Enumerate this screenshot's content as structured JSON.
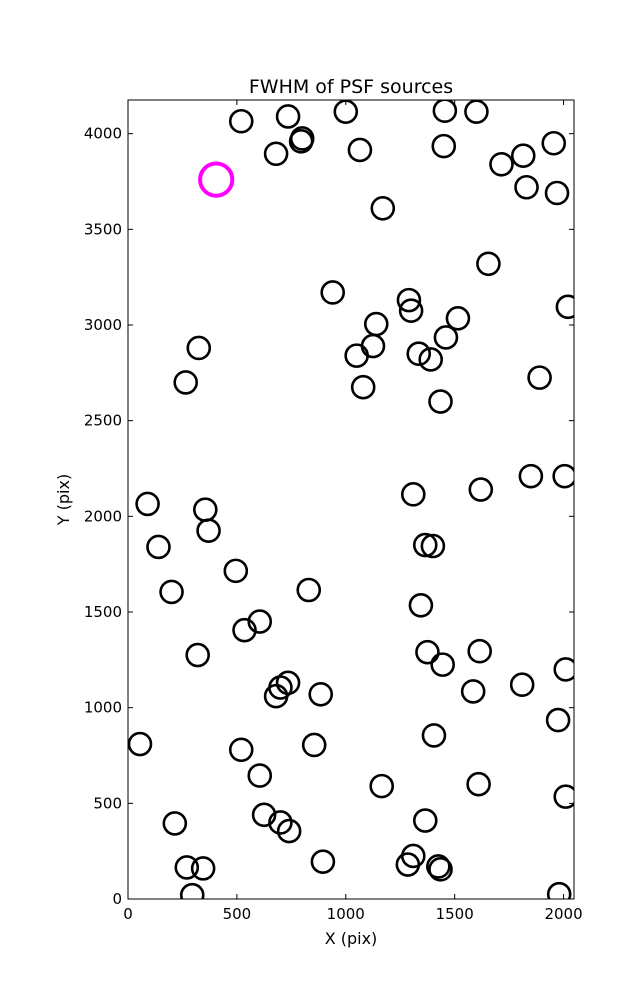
{
  "chart_data": {
    "type": "scatter",
    "title": "FWHM of PSF sources",
    "xlabel": "X (pix)",
    "ylabel": "Y (pix)",
    "xlim": [
      0,
      2048
    ],
    "ylim": [
      0,
      4176
    ],
    "xticks": [
      0,
      500,
      1000,
      1500,
      2000
    ],
    "yticks": [
      0,
      500,
      1000,
      1500,
      2000,
      2500,
      3000,
      3500,
      4000
    ],
    "grid": false,
    "marker": "open-circle",
    "colors": {
      "sources": "#000000",
      "highlight": "#ff00ff"
    },
    "highlight": {
      "x": 405,
      "y": 3760,
      "fwhm": 148
    },
    "series": [
      {
        "points": [
          [
            520,
            4065
          ],
          [
            735,
            4090
          ],
          [
            680,
            3895
          ],
          [
            795,
            3960
          ],
          [
            800,
            3975
          ],
          [
            1000,
            4115
          ],
          [
            1065,
            3915
          ],
          [
            1170,
            3610
          ],
          [
            1450,
            3935
          ],
          [
            1455,
            4120
          ],
          [
            1600,
            4115
          ],
          [
            1715,
            3840
          ],
          [
            1815,
            3885
          ],
          [
            1830,
            3720
          ],
          [
            1955,
            3950
          ],
          [
            1970,
            3690
          ],
          [
            1655,
            3320
          ],
          [
            2020,
            3095
          ],
          [
            940,
            3170
          ],
          [
            1140,
            3005
          ],
          [
            1290,
            3130
          ],
          [
            1300,
            3075
          ],
          [
            1515,
            3035
          ],
          [
            1460,
            2935
          ],
          [
            1050,
            2840
          ],
          [
            1125,
            2890
          ],
          [
            1335,
            2850
          ],
          [
            1390,
            2820
          ],
          [
            1080,
            2675
          ],
          [
            1435,
            2600
          ],
          [
            1890,
            2725
          ],
          [
            325,
            2880
          ],
          [
            265,
            2700
          ],
          [
            90,
            2065
          ],
          [
            355,
            2035
          ],
          [
            370,
            1925
          ],
          [
            140,
            1840
          ],
          [
            495,
            1715
          ],
          [
            200,
            1605
          ],
          [
            1310,
            2115
          ],
          [
            1365,
            1850
          ],
          [
            1400,
            1845
          ],
          [
            1620,
            2140
          ],
          [
            1850,
            2210
          ],
          [
            2005,
            2210
          ],
          [
            830,
            1615
          ],
          [
            1345,
            1535
          ],
          [
            535,
            1405
          ],
          [
            605,
            1450
          ],
          [
            320,
            1275
          ],
          [
            735,
            1130
          ],
          [
            700,
            1105
          ],
          [
            680,
            1060
          ],
          [
            885,
            1070
          ],
          [
            1375,
            1290
          ],
          [
            1445,
            1225
          ],
          [
            1615,
            1295
          ],
          [
            1585,
            1085
          ],
          [
            1810,
            1120
          ],
          [
            2010,
            1200
          ],
          [
            1975,
            935
          ],
          [
            55,
            810
          ],
          [
            520,
            780
          ],
          [
            605,
            645
          ],
          [
            855,
            805
          ],
          [
            1405,
            855
          ],
          [
            625,
            440
          ],
          [
            700,
            400
          ],
          [
            740,
            355
          ],
          [
            1165,
            590
          ],
          [
            1365,
            410
          ],
          [
            1610,
            600
          ],
          [
            2010,
            535
          ],
          [
            215,
            395
          ],
          [
            270,
            165
          ],
          [
            345,
            160
          ],
          [
            295,
            20
          ],
          [
            895,
            195
          ],
          [
            1285,
            180
          ],
          [
            1310,
            225
          ],
          [
            1425,
            170
          ],
          [
            1435,
            155
          ],
          [
            1980,
            25
          ]
        ],
        "fwhm": [
          101,
          101,
          101,
          101,
          101,
          101,
          101,
          101,
          101,
          101,
          101,
          101,
          101,
          101,
          101,
          101,
          101,
          101,
          101,
          101,
          101,
          101,
          101,
          101,
          101,
          101,
          101,
          101,
          101,
          101,
          101,
          101,
          101,
          101,
          101,
          101,
          101,
          101,
          101,
          101,
          101,
          101,
          101,
          101,
          101,
          101,
          101,
          101,
          101,
          101,
          101,
          101,
          101,
          101,
          101,
          101,
          101,
          101,
          101,
          101,
          101,
          101,
          101,
          101,
          101,
          101,
          101,
          101,
          101,
          101,
          101,
          101,
          101,
          101,
          101,
          101,
          101,
          101,
          101,
          101,
          101,
          101,
          101
        ]
      }
    ]
  }
}
